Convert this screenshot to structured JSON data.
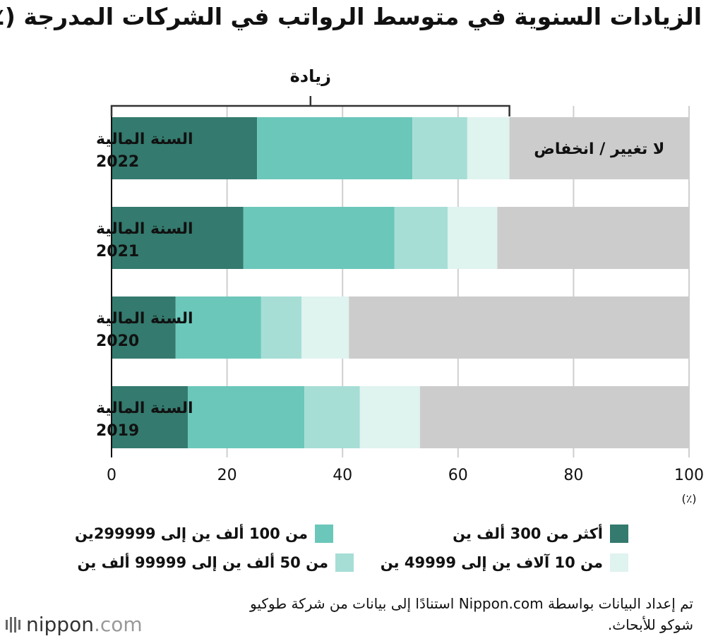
{
  "title": "الزيادات السنوية في متوسط الرواتب في الشركات المدرجة (٪)",
  "legend": {
    "items": [
      {
        "key": "over300k",
        "label": "أكثر من 300 ألف ين",
        "color": "#347a6e"
      },
      {
        "key": "k100to299",
        "label": "من 100 ألف ين إلى 299999ين",
        "color": "#6bc7ba"
      },
      {
        "key": "k50to99",
        "label": "من 50 ألف ين إلى 99999 ألف ين",
        "color": "#a6ded6"
      },
      {
        "key": "k10to49",
        "label": "من 10 آلاف ين إلى 49999 ين",
        "color": "#dff3ef"
      }
    ]
  },
  "source": "تم إعداد البيانات بواسطة Nippon.com استنادًا إلى بيانات من شركة طوكيو شوكو للأبحاث.",
  "logo": {
    "main": "nippon",
    "dot": ".",
    "suffix": "com"
  },
  "chart_data": {
    "type": "bar",
    "orientation": "horizontal",
    "stacked": true,
    "categories": [
      "السنة المالية 2022",
      "السنة المالية 2021",
      "السنة المالية 2020",
      "السنة المالية 2019"
    ],
    "series": [
      {
        "name": "أكثر من 300 ألف ين",
        "color": "#347a6e",
        "values": [
          25.2,
          22.8,
          11.1,
          13.2
        ]
      },
      {
        "name": "من 100 ألف ين إلى 299999ين",
        "color": "#6bc7ba",
        "values": [
          26.9,
          26.2,
          14.8,
          20.2
        ]
      },
      {
        "name": "من 50 ألف ين إلى 99999 ألف ين",
        "color": "#a6ded6",
        "values": [
          9.5,
          9.2,
          7.0,
          9.6
        ]
      },
      {
        "name": "من 10 آلاف ين إلى 49999 ين",
        "color": "#dff3ef",
        "values": [
          7.3,
          8.6,
          8.2,
          10.4
        ]
      },
      {
        "name": "لا تغيير / انخفاض",
        "color": "#cccccc",
        "values": [
          31.1,
          33.2,
          58.9,
          46.6
        ]
      }
    ],
    "xlim": [
      0,
      100
    ],
    "xticks": [
      0,
      20,
      40,
      60,
      80,
      100
    ],
    "x_unit": "(٪)",
    "grid": true,
    "annotations": {
      "increase_bracket_label": "زيادة",
      "no_change_label": "لا تغيير / انخفاض"
    }
  }
}
